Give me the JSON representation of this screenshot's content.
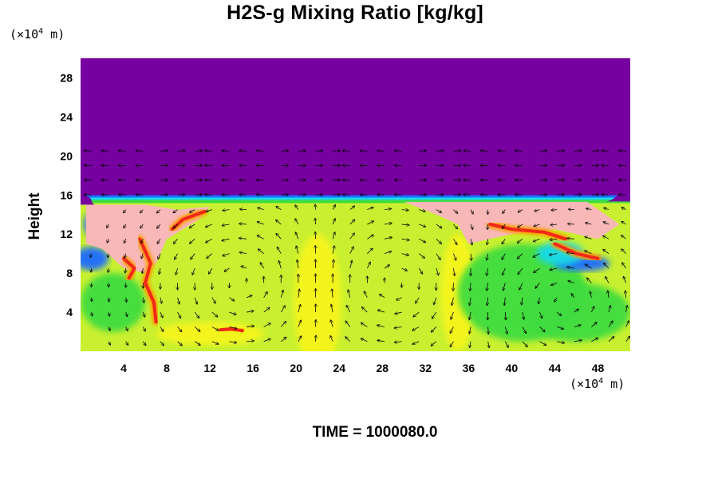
{
  "title": "H2S-g Mixing Ratio [kg/kg]",
  "unit_y": {
    "prefix": "(×10",
    "exp": "4",
    "suffix": " m)"
  },
  "unit_x": {
    "prefix": "(×10",
    "exp": "4",
    "suffix": " m)"
  },
  "time_label": "TIME = 1000080.0",
  "colors": {
    "top_layer": "#7700a0",
    "band_blue": "#1c6cff",
    "band_cyan": "#19d9e8",
    "band_green": "#3fdc3f",
    "lower_yellow_green": "#c8f030",
    "yellow": "#f7f51c",
    "orange": "#ff9a00",
    "red": "#f02818",
    "pink": "#f8b8b8",
    "vector": "#000000"
  },
  "chart_data": {
    "type": "heatmap",
    "title": "H2S-g Mixing Ratio [kg/kg]",
    "xlabel": "",
    "ylabel": "Height",
    "x_unit": "(×10^4 m)",
    "y_unit": "(×10^4 m)",
    "xlim": [
      0,
      51
    ],
    "ylim": [
      0,
      30
    ],
    "xticks": [
      4,
      8,
      12,
      16,
      20,
      24,
      28,
      32,
      36,
      40,
      44,
      48
    ],
    "yticks": [
      4,
      8,
      12,
      16,
      20,
      24,
      28
    ],
    "overlay": "wind vectors",
    "layer_top_height": 15.5,
    "circulation_cells": [
      {
        "center_x": 15,
        "center_y": 7,
        "rotation": "counterclockwise"
      },
      {
        "center_x": 29,
        "center_y": 7,
        "rotation": "clockwise"
      },
      {
        "center_x": 45,
        "center_y": 5,
        "rotation": "counterclockwise"
      }
    ],
    "time": "1000080.0"
  }
}
